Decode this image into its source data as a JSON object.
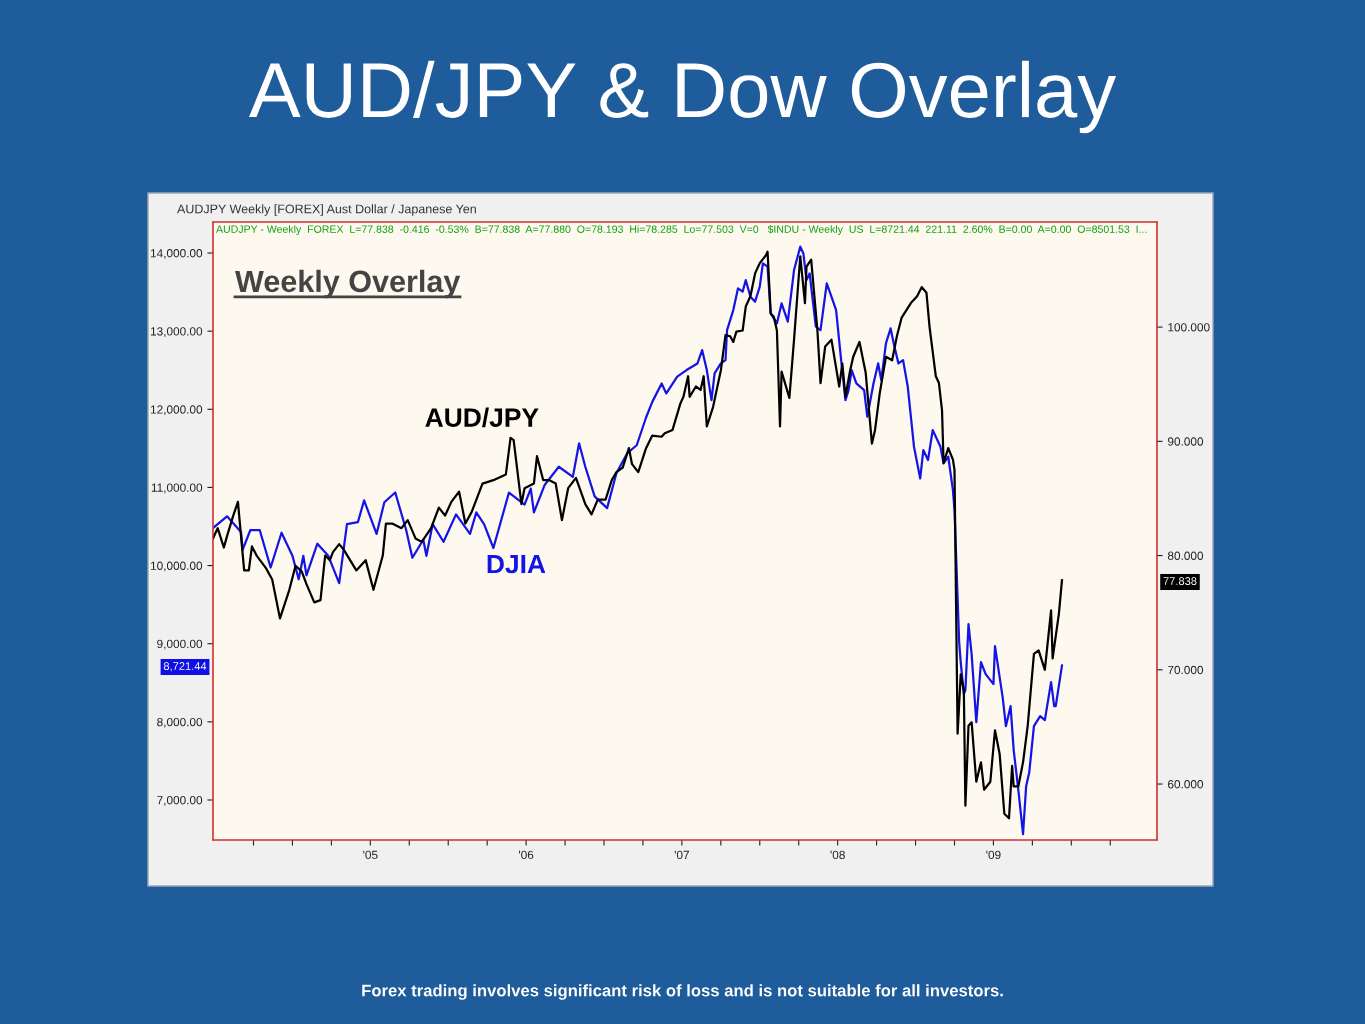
{
  "chart_data": {
    "type": "line",
    "title": "AUD/JPY & Dow Overlay",
    "annotations": [
      "AUDJPY Weekly [FOREX] Aust Dollar / Japanese Yen",
      "AUDJPY - Weekly  FOREX  L=77.838  -0.416  -0.53%  B=77.838  A=77.880  O=78.193  Hi=78.285  Lo=77.503  V=0   $INDU - Weekly  US  L=8721.44  221.11  2.60%  B=0.00  A=0.00  O=8501.53  I...",
      "Weekly Overlay",
      "8,721.44",
      "77.838",
      "Forex trading involves significant risk of loss and is not suitable for all investors."
    ],
    "xlim": [
      2003.99,
      2010.05
    ],
    "xticks": [
      {
        "value": 2004.25,
        "label": null
      },
      {
        "value": 2004.5,
        "label": null
      },
      {
        "value": 2004.75,
        "label": null
      },
      {
        "value": 2005,
        "label": "'05"
      },
      {
        "value": 2005.25,
        "label": null
      },
      {
        "value": 2005.5,
        "label": null
      },
      {
        "value": 2005.75,
        "label": null
      },
      {
        "value": 2006,
        "label": "'06"
      },
      {
        "value": 2006.25,
        "label": null
      },
      {
        "value": 2006.5,
        "label": null
      },
      {
        "value": 2006.75,
        "label": null
      },
      {
        "value": 2007,
        "label": "'07"
      },
      {
        "value": 2007.25,
        "label": null
      },
      {
        "value": 2007.5,
        "label": null
      },
      {
        "value": 2007.75,
        "label": null
      },
      {
        "value": 2008,
        "label": "'08"
      },
      {
        "value": 2008.25,
        "label": null
      },
      {
        "value": 2008.5,
        "label": null
      },
      {
        "value": 2008.75,
        "label": null
      },
      {
        "value": 2009,
        "label": "'09"
      },
      {
        "value": 2009.25,
        "label": null
      },
      {
        "value": 2009.5,
        "label": null
      },
      {
        "value": 2009.75,
        "label": null
      }
    ],
    "ylim": [
      6488,
      14397
    ],
    "yticks": [
      {
        "value": 7000,
        "label": "7,000.00"
      },
      {
        "value": 8000,
        "label": "8,000.00"
      },
      {
        "value": 9000,
        "label": "9,000.00"
      },
      {
        "value": 10000,
        "label": "10,000.00"
      },
      {
        "value": 11000,
        "label": "11,000.00"
      },
      {
        "value": 12000,
        "label": "12,000.00"
      },
      {
        "value": 13000,
        "label": "13,000.00"
      },
      {
        "value": 14000,
        "label": "14,000.00"
      }
    ],
    "y2lim": [
      55.1,
      109.2
    ],
    "y2ticks": [
      {
        "value": 60,
        "label": "60.000"
      },
      {
        "value": 70,
        "label": "70.000"
      },
      {
        "value": 80,
        "label": "80.000"
      },
      {
        "value": 90,
        "label": "90.000"
      },
      {
        "value": 100,
        "label": "100.000"
      }
    ],
    "grid": false,
    "legend": false,
    "line_style": "solid",
    "marker": "none",
    "series": [
      {
        "name": "AUD/JPY",
        "color": "#000000",
        "axis": "y2",
        "x": [
          2003.99,
          2004.02,
          2004.06,
          2004.08,
          2004.12,
          2004.15,
          2004.17,
          2004.19,
          2004.22,
          2004.24,
          2004.27,
          2004.33,
          2004.37,
          2004.42,
          2004.48,
          2004.52,
          2004.56,
          2004.59,
          2004.64,
          2004.68,
          2004.71,
          2004.74,
          2004.76,
          2004.8,
          2004.83,
          2004.91,
          2004.97,
          2005.02,
          2005.08,
          2005.1,
          2005.14,
          2005.2,
          2005.24,
          2005.29,
          2005.33,
          2005.39,
          2005.44,
          2005.48,
          2005.52,
          2005.57,
          2005.61,
          2005.65,
          2005.72,
          2005.79,
          2005.87,
          2005.9,
          2005.92,
          2005.97,
          2005.99,
          2006.05,
          2006.07,
          2006.11,
          2006.15,
          2006.19,
          2006.23,
          2006.27,
          2006.32,
          2006.38,
          2006.42,
          2006.46,
          2006.51,
          2006.55,
          2006.58,
          2006.62,
          2006.66,
          2006.68,
          2006.72,
          2006.77,
          2006.81,
          2006.87,
          2006.89,
          2006.94,
          2006.99,
          2007.01,
          2007.04,
          2007.05,
          2007.09,
          2007.12,
          2007.14,
          2007.16,
          2007.2,
          2007.25,
          2007.28,
          2007.31,
          2007.33,
          2007.35,
          2007.39,
          2007.41,
          2007.44,
          2007.47,
          2007.5,
          2007.54,
          2007.55,
          2007.57,
          2007.59,
          2007.61,
          2007.63,
          2007.64,
          2007.69,
          2007.72,
          2007.76,
          2007.79,
          2007.8,
          2007.83,
          2007.87,
          2007.89,
          2007.92,
          2007.96,
          2008.01,
          2008.03,
          2008.05,
          2008.08,
          2008.1,
          2008.14,
          2008.18,
          2008.22,
          2008.24,
          2008.27,
          2008.31,
          2008.35,
          2008.38,
          2008.41,
          2008.47,
          2008.51,
          2008.54,
          2008.57,
          2008.59,
          2008.63,
          2008.65,
          2008.67,
          2008.68,
          2008.71,
          2008.74,
          2008.75,
          2008.76,
          2008.77,
          2008.79,
          2008.81,
          2008.82,
          2008.84,
          2008.86,
          2008.89,
          2008.92,
          2008.94,
          2008.98,
          2009.01,
          2009.04,
          2009.07,
          2009.1,
          2009.12,
          2009.13,
          2009.16,
          2009.19,
          2009.22,
          2009.26,
          2009.29,
          2009.33,
          2009.37,
          2009.38,
          2009.42,
          2009.44
        ],
        "values": [
          81.5,
          82.4,
          80.7,
          81.7,
          83.5,
          84.7,
          81.7,
          78.7,
          78.7,
          80.8,
          80.0,
          78.9,
          77.9,
          74.5,
          77.0,
          79.1,
          78.6,
          77.5,
          75.9,
          76.1,
          80.0,
          79.6,
          80.3,
          81.0,
          80.5,
          78.7,
          79.6,
          77.0,
          80.0,
          82.8,
          82.8,
          82.4,
          83.1,
          81.5,
          81.2,
          82.4,
          84.2,
          83.5,
          84.7,
          85.6,
          82.8,
          83.8,
          86.3,
          86.6,
          87.1,
          90.3,
          90.1,
          84.5,
          85.9,
          86.3,
          88.7,
          86.6,
          86.6,
          86.3,
          83.1,
          85.9,
          86.8,
          84.5,
          83.6,
          84.9,
          84.9,
          86.6,
          87.3,
          87.7,
          89.4,
          88.0,
          87.3,
          89.4,
          90.5,
          90.4,
          90.7,
          91.0,
          93.3,
          93.9,
          95.7,
          93.9,
          94.8,
          94.5,
          95.7,
          91.3,
          93.0,
          96.2,
          99.3,
          99.2,
          98.7,
          99.6,
          99.7,
          101.8,
          102.7,
          104.7,
          105.6,
          106.3,
          106.6,
          101.2,
          100.9,
          99.7,
          91.3,
          96.1,
          93.8,
          98.9,
          106.2,
          102.1,
          105.3,
          105.9,
          99.7,
          95.1,
          98.3,
          98.9,
          94.8,
          96.8,
          93.9,
          96.2,
          97.4,
          98.7,
          96.0,
          89.8,
          91.0,
          94.2,
          97.4,
          97.1,
          99.2,
          100.8,
          102.1,
          102.7,
          103.5,
          103.0,
          100.0,
          95.7,
          95.1,
          92.7,
          88.1,
          89.4,
          88.4,
          87.5,
          75.9,
          64.4,
          69.6,
          68.2,
          58.1,
          65.1,
          65.4,
          60.2,
          61.9,
          59.5,
          60.2,
          64.7,
          62.6,
          57.4,
          57.0,
          61.6,
          59.8,
          59.8,
          61.9,
          65.1,
          71.4,
          71.7,
          70.0,
          75.2,
          71.0,
          74.9,
          77.84
        ]
      },
      {
        "name": "DJIA",
        "color": "#1414e6",
        "axis": "y",
        "x": [
          2003.99,
          2004.08,
          2004.17,
          2004.18,
          2004.23,
          2004.29,
          2004.36,
          2004.43,
          2004.5,
          2004.54,
          2004.57,
          2004.59,
          2004.66,
          2004.73,
          2004.8,
          2004.85,
          2004.92,
          2004.96,
          2005.04,
          2005.09,
          2005.16,
          2005.23,
          2005.27,
          2005.34,
          2005.36,
          2005.4,
          2005.47,
          2005.55,
          2005.64,
          2005.68,
          2005.73,
          2005.79,
          2005.89,
          2005.99,
          2006.03,
          2006.05,
          2006.12,
          2006.21,
          2006.3,
          2006.34,
          2006.38,
          2006.44,
          2006.52,
          2006.58,
          2006.65,
          2006.71,
          2006.77,
          2006.81,
          2006.87,
          2006.9,
          2006.97,
          2007.03,
          2007.1,
          2007.13,
          2007.16,
          2007.19,
          2007.21,
          2007.25,
          2007.28,
          2007.29,
          2007.33,
          2007.36,
          2007.39,
          2007.41,
          2007.44,
          2007.47,
          2007.5,
          2007.52,
          2007.55,
          2007.57,
          2007.61,
          2007.64,
          2007.68,
          2007.72,
          2007.76,
          2007.78,
          2007.8,
          2007.82,
          2007.86,
          2007.89,
          2007.93,
          2007.96,
          2007.99,
          2008.02,
          2008.05,
          2008.07,
          2008.09,
          2008.12,
          2008.17,
          2008.19,
          2008.23,
          2008.26,
          2008.28,
          2008.31,
          2008.34,
          2008.36,
          2008.39,
          2008.42,
          2008.45,
          2008.49,
          2008.53,
          2008.55,
          2008.58,
          2008.61,
          2008.66,
          2008.68,
          2008.71,
          2008.74,
          2008.75,
          2008.77,
          2008.78,
          2008.79,
          2008.81,
          2008.82,
          2008.84,
          2008.86,
          2008.89,
          2008.92,
          2008.95,
          2009.0,
          2009.01,
          2009.06,
          2009.08,
          2009.11,
          2009.13,
          2009.16,
          2009.19,
          2009.21,
          2009.23,
          2009.26,
          2009.3,
          2009.33,
          2009.37,
          2009.39,
          2009.4,
          2009.44
        ],
        "values": [
          10480,
          10630,
          10430,
          10200,
          10455,
          10455,
          9975,
          10420,
          10125,
          9825,
          10125,
          9875,
          10280,
          10125,
          9775,
          10530,
          10555,
          10835,
          10405,
          10810,
          10935,
          10455,
          10100,
          10330,
          10125,
          10530,
          10305,
          10655,
          10405,
          10680,
          10530,
          10225,
          10935,
          10780,
          10985,
          10680,
          11035,
          11265,
          11135,
          11565,
          11265,
          10885,
          10735,
          11185,
          11440,
          11540,
          11895,
          12095,
          12331,
          12203,
          12417,
          12502,
          12587,
          12758,
          12502,
          12118,
          12459,
          12587,
          12630,
          13014,
          13270,
          13547,
          13505,
          13654,
          13441,
          13377,
          13569,
          13867,
          13825,
          13227,
          13099,
          13355,
          13121,
          13782,
          14081,
          13995,
          13654,
          13739,
          13057,
          13014,
          13611,
          13441,
          13270,
          12673,
          12118,
          12246,
          12502,
          12331,
          12246,
          11905,
          12331,
          12587,
          12374,
          12843,
          13035,
          12843,
          12587,
          12630,
          12289,
          11521,
          11115,
          11478,
          11350,
          11734,
          11521,
          11307,
          11393,
          10966,
          10710,
          9584,
          9020,
          8764,
          8355,
          8406,
          9251,
          8867,
          7996,
          8764,
          8611,
          8483,
          8969,
          8304,
          7945,
          8201,
          7638,
          7126,
          6563,
          7177,
          7356,
          7945,
          8073,
          8022,
          8508,
          8201,
          8201,
          8721.44
        ]
      }
    ]
  }
}
